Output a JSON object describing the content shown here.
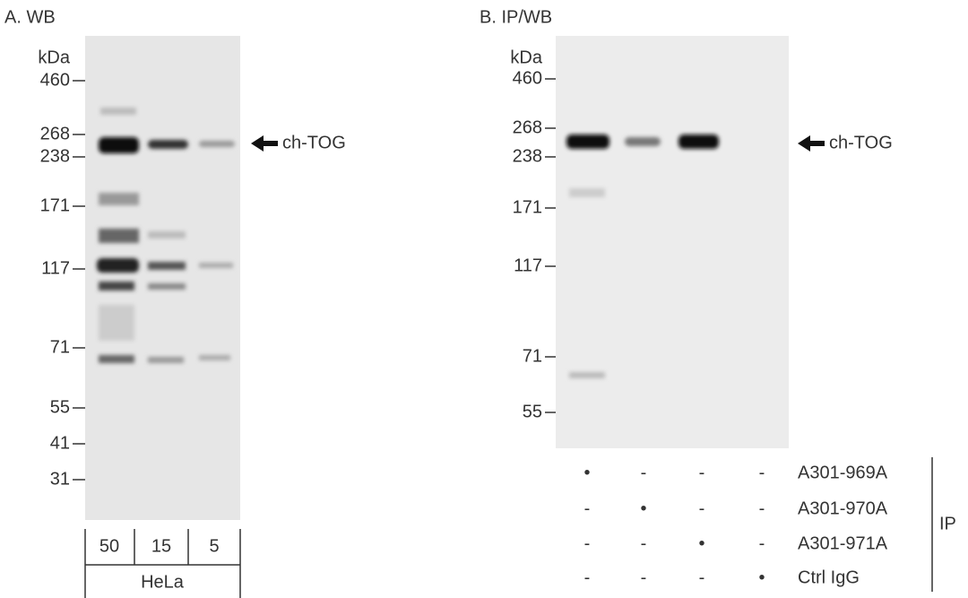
{
  "panels": [
    {
      "title": "A. WB",
      "unit": "kDa",
      "markers": [
        "460",
        "268",
        "238",
        "171",
        "117",
        "71",
        "55",
        "41",
        "31"
      ],
      "target": "ch-TOG",
      "lanes": [
        "50",
        "15",
        "5"
      ],
      "sample": "HeLa"
    },
    {
      "title": "B. IP/WB",
      "unit": "kDa",
      "markers": [
        "460",
        "268",
        "238",
        "171",
        "117",
        "71",
        "55"
      ],
      "target": "ch-TOG",
      "ip_rows": [
        {
          "label": "A301-969A",
          "marks": [
            "•",
            "-",
            "-",
            "-"
          ]
        },
        {
          "label": "A301-970A",
          "marks": [
            "-",
            "•",
            "-",
            "-"
          ]
        },
        {
          "label": "A301-971A",
          "marks": [
            "-",
            "-",
            "•",
            "-"
          ]
        },
        {
          "label": "Ctrl IgG",
          "marks": [
            "-",
            "-",
            "-",
            "•"
          ]
        }
      ],
      "ip_label": "IP"
    }
  ]
}
